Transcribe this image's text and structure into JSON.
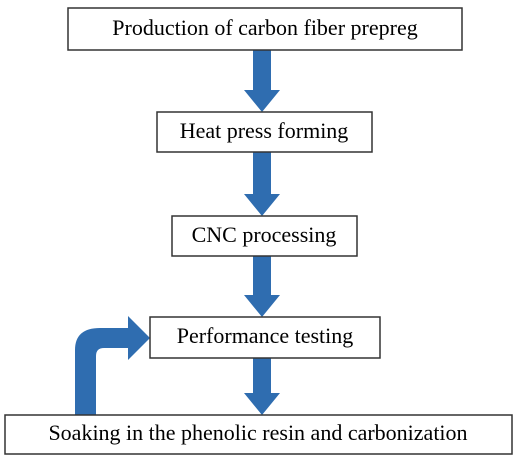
{
  "nodes": [
    {
      "label": "Production of carbon fiber prepreg"
    },
    {
      "label": "Heat press forming"
    },
    {
      "label": "CNC processing"
    },
    {
      "label": "Performance testing"
    },
    {
      "label": "Soaking in the phenolic resin and carbonization"
    }
  ]
}
